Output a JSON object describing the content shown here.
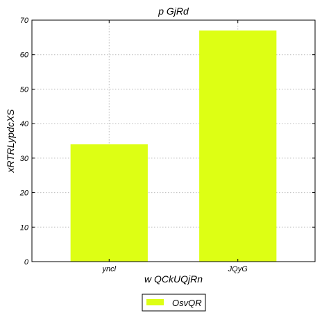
{
  "chart_data": {
    "type": "bar",
    "title": "p GjRd",
    "xlabel": "w QCkUQjRn",
    "ylabel": "xRTRLypdcXS",
    "categories": [
      "yncl",
      "JQyG"
    ],
    "series": [
      {
        "name": "OsvQR",
        "values": [
          34,
          67
        ]
      }
    ],
    "ylim": [
      0,
      70
    ],
    "yticks": [
      0,
      10,
      20,
      30,
      40,
      50,
      60,
      70
    ],
    "grid": true,
    "legend_position": "bottom-center",
    "bar_color": "#ddff14",
    "grid_color": "#bbbbbb"
  }
}
